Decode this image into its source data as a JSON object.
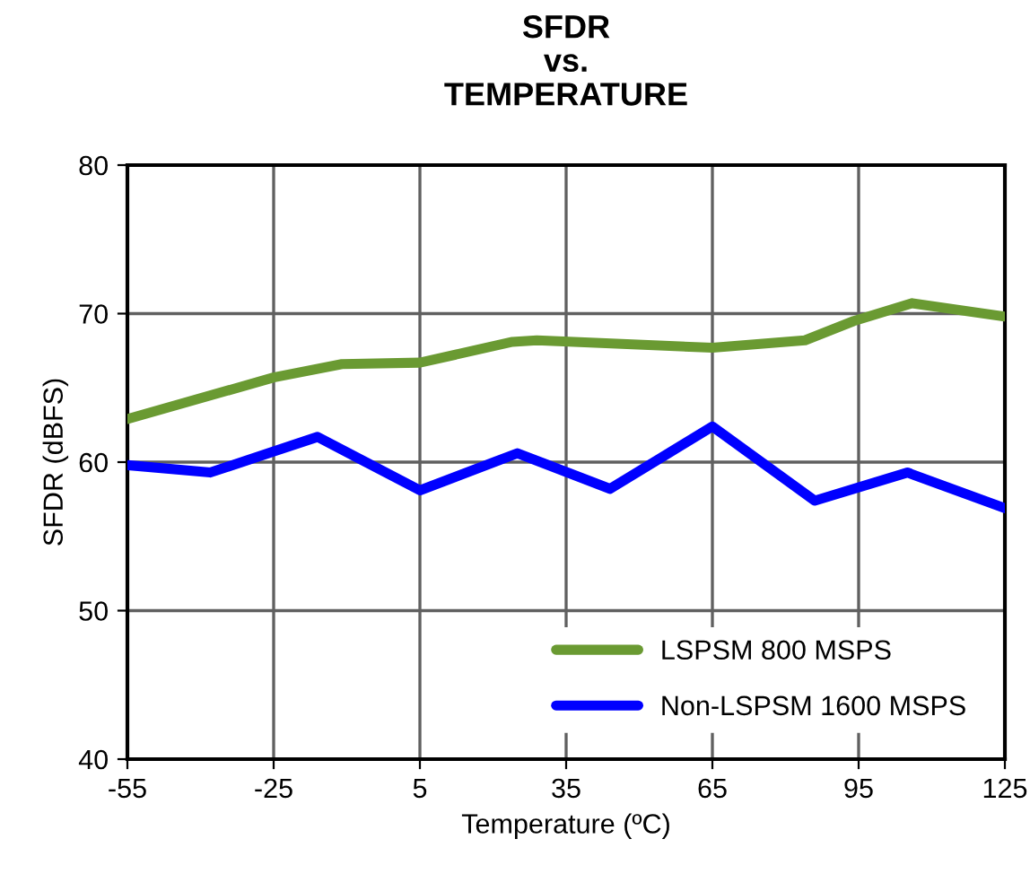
{
  "chart_data": {
    "type": "line",
    "title": "SFDR\nvs.\nTEMPERATURE",
    "xlabel": "Temperature (ºC)",
    "ylabel": "SFDR (dBFS)",
    "xlim": [
      -55,
      125
    ],
    "xticks": [
      -55,
      -25,
      5,
      35,
      65,
      95,
      125
    ],
    "ylim": [
      40,
      80
    ],
    "yticks": [
      40,
      50,
      60,
      70,
      80
    ],
    "grid": true,
    "legend": "bottom right",
    "series": [
      {
        "name": "LSPSM 800 MSPS",
        "color": "#6a9a32",
        "x": [
          -55,
          -25,
          -11,
          5,
          24,
          29,
          65,
          84,
          94,
          106,
          125
        ],
        "values": [
          62.9,
          65.7,
          66.6,
          66.7,
          68.1,
          68.2,
          67.7,
          68.2,
          69.5,
          70.7,
          69.8
        ]
      },
      {
        "name": "Non-LSPSM 1600 MSPS",
        "color": "#0000ff",
        "x": [
          -55,
          -38,
          -16,
          5,
          25,
          44,
          65,
          86,
          105,
          125
        ],
        "values": [
          59.8,
          59.3,
          61.7,
          58.1,
          60.6,
          58.2,
          62.4,
          57.4,
          59.3,
          56.9
        ]
      }
    ]
  }
}
